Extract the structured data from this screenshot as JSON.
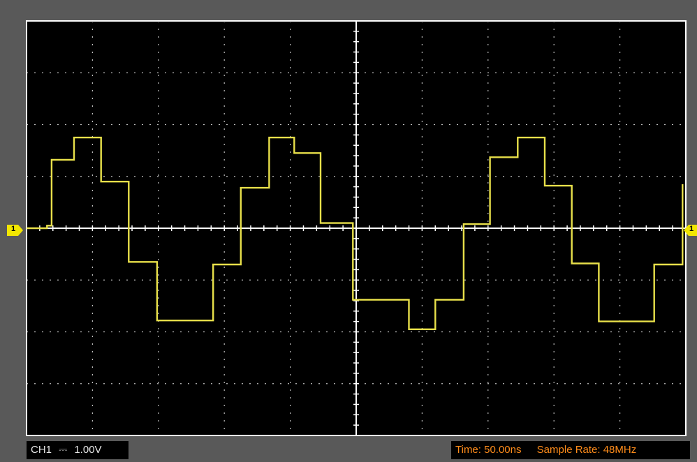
{
  "chart_data": {
    "type": "line",
    "title": "",
    "xlabel": "",
    "ylabel": "",
    "grid": true,
    "divisions": {
      "x": 10,
      "y": 8
    },
    "unit_x": "div",
    "unit_y": "div",
    "xlim": [
      0,
      10
    ],
    "ylim": [
      -4,
      4
    ],
    "series": [
      {
        "color": "#e8e04a",
        "points": [
          [
            0.0,
            0.0
          ],
          [
            0.31,
            0.0
          ],
          [
            0.31,
            0.05
          ],
          [
            0.38,
            0.05
          ],
          [
            0.38,
            1.32
          ],
          [
            0.72,
            1.32
          ],
          [
            0.72,
            1.75
          ],
          [
            1.13,
            1.75
          ],
          [
            1.13,
            0.9
          ],
          [
            1.55,
            0.9
          ],
          [
            1.55,
            -0.65
          ],
          [
            1.98,
            -0.65
          ],
          [
            1.98,
            -1.78
          ],
          [
            2.83,
            -1.78
          ],
          [
            2.83,
            -0.7
          ],
          [
            3.25,
            -0.7
          ],
          [
            3.25,
            0.78
          ],
          [
            3.68,
            0.78
          ],
          [
            3.68,
            1.75
          ],
          [
            4.06,
            1.75
          ],
          [
            4.06,
            1.45
          ],
          [
            4.46,
            1.45
          ],
          [
            4.46,
            0.1
          ],
          [
            4.95,
            0.1
          ],
          [
            4.95,
            -1.38
          ],
          [
            5.8,
            -1.38
          ],
          [
            5.8,
            -1.95
          ],
          [
            6.2,
            -1.95
          ],
          [
            6.2,
            -1.38
          ],
          [
            6.63,
            -1.38
          ],
          [
            6.63,
            0.08
          ],
          [
            7.03,
            0.08
          ],
          [
            7.03,
            1.37
          ],
          [
            7.45,
            1.37
          ],
          [
            7.45,
            1.75
          ],
          [
            7.86,
            1.75
          ],
          [
            7.86,
            0.82
          ],
          [
            8.27,
            0.82
          ],
          [
            8.27,
            -0.68
          ],
          [
            8.68,
            -0.68
          ],
          [
            8.68,
            -1.8
          ],
          [
            9.52,
            -1.8
          ],
          [
            9.52,
            -0.7
          ],
          [
            9.95,
            -0.7
          ],
          [
            9.95,
            0.85
          ]
        ]
      }
    ]
  },
  "status": {
    "channel": "CH1",
    "coupling_symbol": "⎓",
    "volts_per_div": "1.00V",
    "time": "Time: 50.00ns",
    "sample_rate": "Sample Rate: 48MHz"
  },
  "markers": {
    "left_label": "1",
    "right_label": "1",
    "color": "#f2e600"
  },
  "colors": {
    "screen": "#000000",
    "border": "#ffffff",
    "grid": "#bdbdbd",
    "trace": "#e8e04a",
    "time_text": "#ff8c1a"
  }
}
